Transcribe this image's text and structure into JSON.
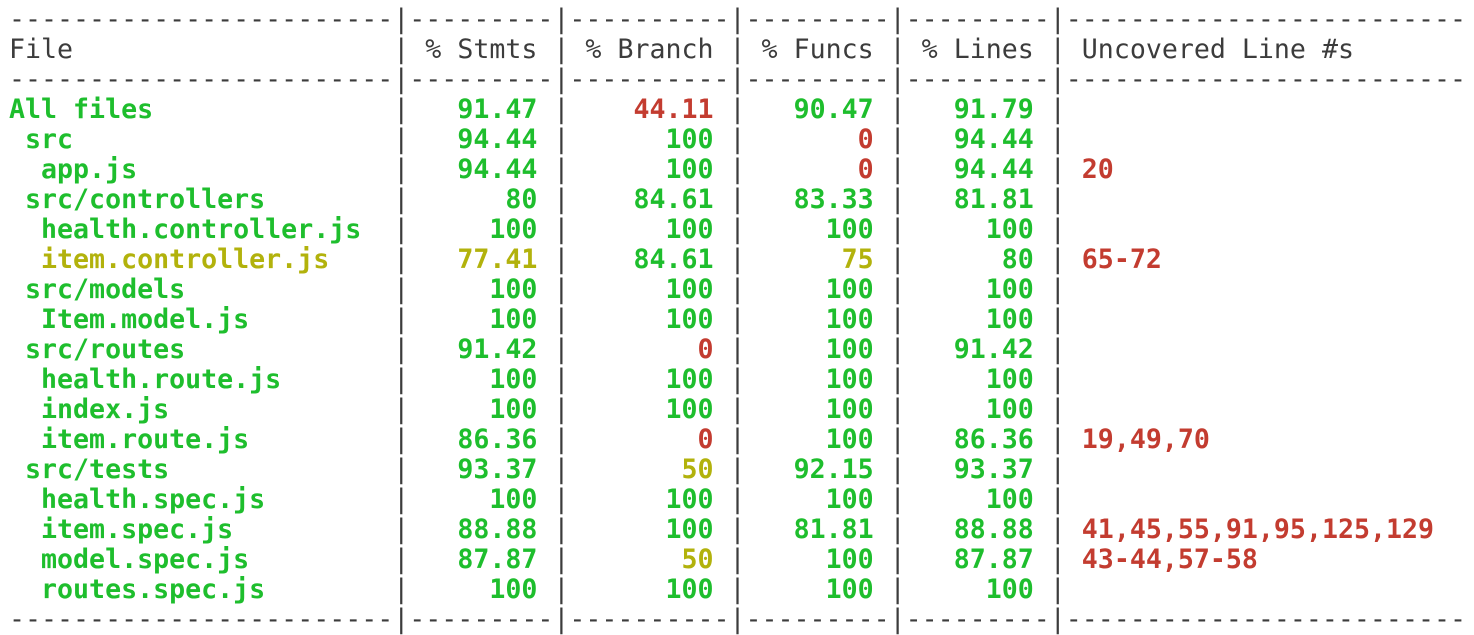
{
  "terminal": {
    "description": "jest/istanbul text coverage report",
    "colors": {
      "background": "#ffffff",
      "foreground": "#3c3c3c",
      "green": "#1ebe2d",
      "red": "#c33c30",
      "yellow": "#b2b20c"
    },
    "columns": [
      {
        "key": "file",
        "label": "File",
        "width": 24,
        "align": "left"
      },
      {
        "key": "stmts",
        "label": "% Stmts",
        "width": 9,
        "align": "right"
      },
      {
        "key": "branch",
        "label": "% Branch",
        "width": 10,
        "align": "right"
      },
      {
        "key": "funcs",
        "label": "% Funcs",
        "width": 9,
        "align": "right"
      },
      {
        "key": "lines",
        "label": "% Lines",
        "width": 9,
        "align": "right"
      },
      {
        "key": "uncovered",
        "label": "Uncovered Line #s",
        "width": 25,
        "align": "left"
      }
    ],
    "rows": [
      {
        "file": "All files",
        "indent": 0,
        "file_color": "green",
        "stmts": {
          "value": "91.47",
          "color": "green"
        },
        "branch": {
          "value": "44.11",
          "color": "red"
        },
        "funcs": {
          "value": "90.47",
          "color": "green"
        },
        "lines": {
          "value": "91.79",
          "color": "green"
        },
        "uncovered": {
          "value": "",
          "color": "red"
        }
      },
      {
        "file": "src",
        "indent": 1,
        "file_color": "green",
        "stmts": {
          "value": "94.44",
          "color": "green"
        },
        "branch": {
          "value": "100",
          "color": "green"
        },
        "funcs": {
          "value": "0",
          "color": "red"
        },
        "lines": {
          "value": "94.44",
          "color": "green"
        },
        "uncovered": {
          "value": "",
          "color": "red"
        }
      },
      {
        "file": "app.js",
        "indent": 2,
        "file_color": "green",
        "stmts": {
          "value": "94.44",
          "color": "green"
        },
        "branch": {
          "value": "100",
          "color": "green"
        },
        "funcs": {
          "value": "0",
          "color": "red"
        },
        "lines": {
          "value": "94.44",
          "color": "green"
        },
        "uncovered": {
          "value": "20",
          "color": "red"
        }
      },
      {
        "file": "src/controllers",
        "indent": 1,
        "file_color": "green",
        "stmts": {
          "value": "80",
          "color": "green"
        },
        "branch": {
          "value": "84.61",
          "color": "green"
        },
        "funcs": {
          "value": "83.33",
          "color": "green"
        },
        "lines": {
          "value": "81.81",
          "color": "green"
        },
        "uncovered": {
          "value": "",
          "color": "red"
        }
      },
      {
        "file": "health.controller.js",
        "indent": 2,
        "file_color": "green",
        "stmts": {
          "value": "100",
          "color": "green"
        },
        "branch": {
          "value": "100",
          "color": "green"
        },
        "funcs": {
          "value": "100",
          "color": "green"
        },
        "lines": {
          "value": "100",
          "color": "green"
        },
        "uncovered": {
          "value": "",
          "color": "red"
        }
      },
      {
        "file": "item.controller.js",
        "indent": 2,
        "file_color": "yellow",
        "stmts": {
          "value": "77.41",
          "color": "yellow"
        },
        "branch": {
          "value": "84.61",
          "color": "green"
        },
        "funcs": {
          "value": "75",
          "color": "yellow"
        },
        "lines": {
          "value": "80",
          "color": "green"
        },
        "uncovered": {
          "value": "65-72",
          "color": "red"
        }
      },
      {
        "file": "src/models",
        "indent": 1,
        "file_color": "green",
        "stmts": {
          "value": "100",
          "color": "green"
        },
        "branch": {
          "value": "100",
          "color": "green"
        },
        "funcs": {
          "value": "100",
          "color": "green"
        },
        "lines": {
          "value": "100",
          "color": "green"
        },
        "uncovered": {
          "value": "",
          "color": "red"
        }
      },
      {
        "file": "Item.model.js",
        "indent": 2,
        "file_color": "green",
        "stmts": {
          "value": "100",
          "color": "green"
        },
        "branch": {
          "value": "100",
          "color": "green"
        },
        "funcs": {
          "value": "100",
          "color": "green"
        },
        "lines": {
          "value": "100",
          "color": "green"
        },
        "uncovered": {
          "value": "",
          "color": "red"
        }
      },
      {
        "file": "src/routes",
        "indent": 1,
        "file_color": "green",
        "stmts": {
          "value": "91.42",
          "color": "green"
        },
        "branch": {
          "value": "0",
          "color": "red"
        },
        "funcs": {
          "value": "100",
          "color": "green"
        },
        "lines": {
          "value": "91.42",
          "color": "green"
        },
        "uncovered": {
          "value": "",
          "color": "red"
        }
      },
      {
        "file": "health.route.js",
        "indent": 2,
        "file_color": "green",
        "stmts": {
          "value": "100",
          "color": "green"
        },
        "branch": {
          "value": "100",
          "color": "green"
        },
        "funcs": {
          "value": "100",
          "color": "green"
        },
        "lines": {
          "value": "100",
          "color": "green"
        },
        "uncovered": {
          "value": "",
          "color": "red"
        }
      },
      {
        "file": "index.js",
        "indent": 2,
        "file_color": "green",
        "stmts": {
          "value": "100",
          "color": "green"
        },
        "branch": {
          "value": "100",
          "color": "green"
        },
        "funcs": {
          "value": "100",
          "color": "green"
        },
        "lines": {
          "value": "100",
          "color": "green"
        },
        "uncovered": {
          "value": "",
          "color": "red"
        }
      },
      {
        "file": "item.route.js",
        "indent": 2,
        "file_color": "green",
        "stmts": {
          "value": "86.36",
          "color": "green"
        },
        "branch": {
          "value": "0",
          "color": "red"
        },
        "funcs": {
          "value": "100",
          "color": "green"
        },
        "lines": {
          "value": "86.36",
          "color": "green"
        },
        "uncovered": {
          "value": "19,49,70",
          "color": "red"
        }
      },
      {
        "file": "src/tests",
        "indent": 1,
        "file_color": "green",
        "stmts": {
          "value": "93.37",
          "color": "green"
        },
        "branch": {
          "value": "50",
          "color": "yellow"
        },
        "funcs": {
          "value": "92.15",
          "color": "green"
        },
        "lines": {
          "value": "93.37",
          "color": "green"
        },
        "uncovered": {
          "value": "",
          "color": "red"
        }
      },
      {
        "file": "health.spec.js",
        "indent": 2,
        "file_color": "green",
        "stmts": {
          "value": "100",
          "color": "green"
        },
        "branch": {
          "value": "100",
          "color": "green"
        },
        "funcs": {
          "value": "100",
          "color": "green"
        },
        "lines": {
          "value": "100",
          "color": "green"
        },
        "uncovered": {
          "value": "",
          "color": "red"
        }
      },
      {
        "file": "item.spec.js",
        "indent": 2,
        "file_color": "green",
        "stmts": {
          "value": "88.88",
          "color": "green"
        },
        "branch": {
          "value": "100",
          "color": "green"
        },
        "funcs": {
          "value": "81.81",
          "color": "green"
        },
        "lines": {
          "value": "88.88",
          "color": "green"
        },
        "uncovered": {
          "value": "41,45,55,91,95,125,129",
          "color": "red"
        }
      },
      {
        "file": "model.spec.js",
        "indent": 2,
        "file_color": "green",
        "stmts": {
          "value": "87.87",
          "color": "green"
        },
        "branch": {
          "value": "50",
          "color": "yellow"
        },
        "funcs": {
          "value": "100",
          "color": "green"
        },
        "lines": {
          "value": "87.87",
          "color": "green"
        },
        "uncovered": {
          "value": "43-44,57-58",
          "color": "red"
        }
      },
      {
        "file": "routes.spec.js",
        "indent": 2,
        "file_color": "green",
        "stmts": {
          "value": "100",
          "color": "green"
        },
        "branch": {
          "value": "100",
          "color": "green"
        },
        "funcs": {
          "value": "100",
          "color": "green"
        },
        "lines": {
          "value": "100",
          "color": "green"
        },
        "uncovered": {
          "value": "",
          "color": "red"
        }
      }
    ]
  }
}
